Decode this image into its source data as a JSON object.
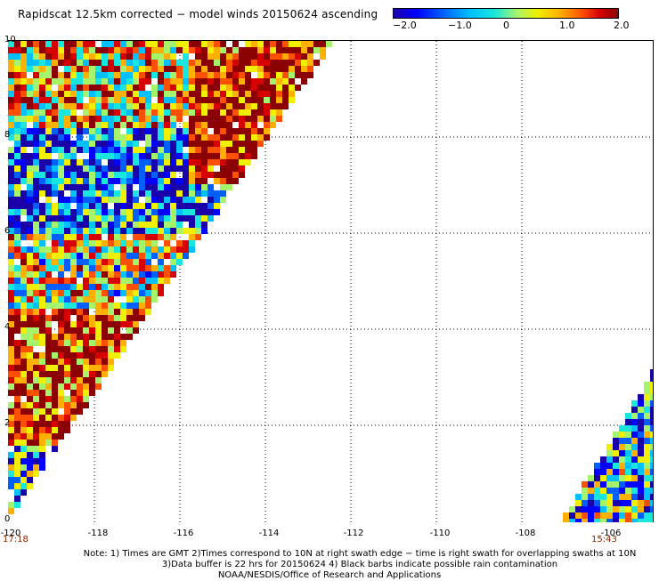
{
  "title": "Rapidscat 12.5km corrected − model winds 20150624 ascending",
  "colorbar": {
    "labels": [
      "−2.0",
      "−1.0",
      "0",
      "1.0",
      "2.0"
    ],
    "min": -2.0,
    "max": 2.0,
    "colors": {
      "low": "#1a00a8",
      "mid": "#19e7dd",
      "high": "#8b0000"
    }
  },
  "axes": {
    "y_ticks": [
      "10",
      "8",
      "6",
      "4",
      "2",
      "0"
    ],
    "x_ticks": [
      "-120",
      "-118",
      "-116",
      "-114",
      "-112",
      "-110",
      "-108",
      "-106"
    ],
    "x_range": [
      -120,
      -105
    ],
    "y_range": [
      0,
      10
    ]
  },
  "times": {
    "left": "17:18",
    "right": "15:43"
  },
  "notes": {
    "line1": "Note: 1) Times are GMT 2)Times correspond to 10N at right swath edge − time is right swath for overlapping swaths at 10N",
    "line2": "3)Data buffer is 22 hrs for 20150624 4) Black barbs indicate possible rain contamination",
    "line3": "NOAA/NESDIS/Office of Research and Applications"
  },
  "palette": [
    "#1a00a8",
    "#0000ff",
    "#0060ff",
    "#00c0ff",
    "#19e7dd",
    "#a6f46b",
    "#f0f000",
    "#ffb000",
    "#ff5000",
    "#d60000",
    "#8b0000"
  ]
}
